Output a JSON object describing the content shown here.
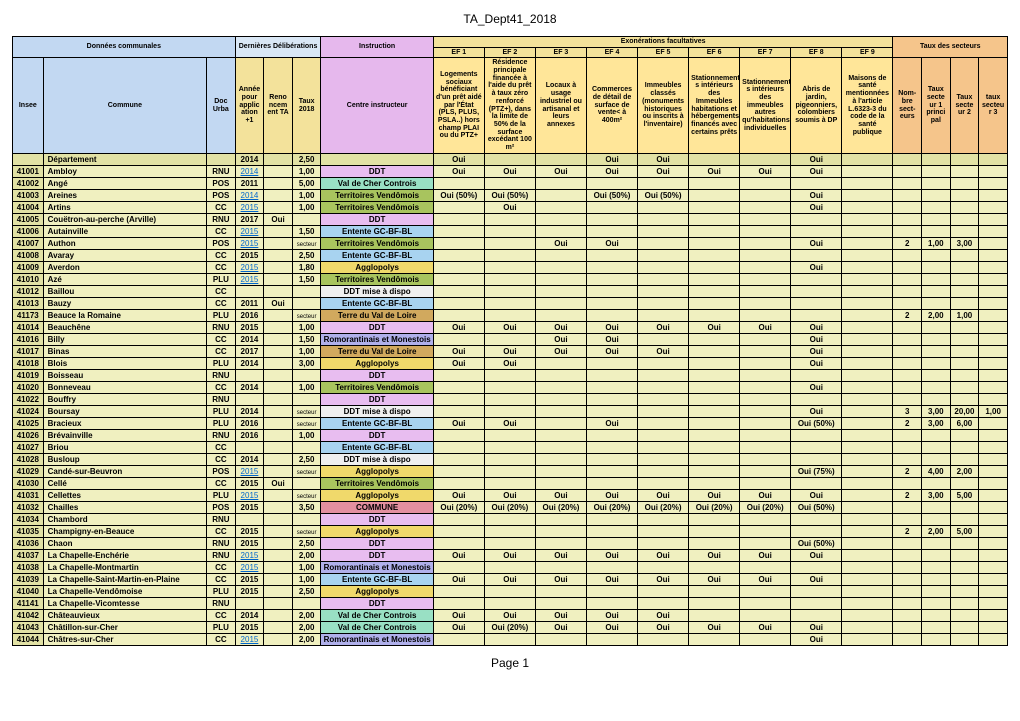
{
  "page_title": "TA_Dept41_2018",
  "footer": "Page 1",
  "colors": {
    "header_blue": "#c2d8f2",
    "header_violet": "#e6b8ed",
    "header_orange": "#f5c58b",
    "header_yellowH": "#f3e29b",
    "header_yellow": "#ffe699",
    "row_khaki": "#e2e2a5",
    "row_lightkhaki": "#f0f0c0",
    "ci_ddt": "#e8bdf0",
    "ci_valcher": "#99e0c4",
    "ci_terrvend": "#a8c45e",
    "ci_entente": "#a8d3f0",
    "ci_agglo": "#f0d96b",
    "ci_ddtmise": "#efefef",
    "ci_terreval": "#d1a95e",
    "ci_romo": "#b0b0eb",
    "ci_commune": "#e38fa0"
  },
  "header": {
    "donnees_communales": "Données communales",
    "dernieres_deliberations": "Dernières Délibérations",
    "instruction": "Instruction",
    "exonerations": "Exonérations facultatives",
    "taux_secteurs": "Taux des secteurs",
    "ef_labels": [
      "EF 1",
      "EF 2",
      "EF 3",
      "EF 4",
      "EF 5",
      "EF 6",
      "EF 7",
      "EF 8",
      "EF 9"
    ],
    "insee": "Insee",
    "commune": "Commune",
    "doc_urba": "Doc Urba",
    "annee_pour_applic": "Année pour applic ation +1",
    "reno_ncem_ta": "Reno ncem ent TA",
    "taux_2018": "Taux 2018",
    "centre_instructeur": "Centre instructeur",
    "ef1_desc": "Logements sociaux bénéficiant d'un prêt aidé par l'État (PLS, PLUS, PSLA..) hors champ PLAI ou du PTZ+",
    "ef2_desc": "Résidence principale financée à l'aide du prêt à taux zéro renforcé (PTZ+), dans la limite de 50% de la surface excédant 100 m²",
    "ef3_desc": "Locaux à usage industriel ou artisanal et leurs annexes",
    "ef4_desc": "Commerces de détail de surface de vente< à 400m²",
    "ef5_desc": "Immeubles classés (monuments historiques ou inscrits à l'inventaire)",
    "ef6_desc": "Stationnement s intérieurs des Immeubles habitations et hébergements financés avec certains prêts",
    "ef7_desc": "Stationnement s intérieurs des immeubles autres qu'habitations individuelles",
    "ef8_desc": "Abris de jardin, pigeonniers, colombiers soumis à DP",
    "ef9_desc": "Maisons de santé mentionnées à l'article L.6323-3 du code de la santé publique",
    "nom_bre_sect": "Nom- bre sect- eurs",
    "taux_secte_ur1": "Taux secte ur 1 princi pal",
    "taux_secte_ur2": "Taux secte ur 2",
    "taux_secteu_r3": "taux secteu r 3"
  },
  "departement_label": "Département",
  "ci_map": {
    "DDT": "ci-ddt",
    "Val de Cher Controis": "ci-valcher",
    "Territoires Vendômois": "ci-terrvend",
    "Entente GC-BF-BL": "ci-entente",
    "Agglopolys": "ci-agglo",
    "DDT mise à dispo": "ci-ddtmise",
    "Terre du Val de Loire": "ci-terreval",
    "Romorantinais et Monestois": "ci-romo",
    "COMMUNE": "ci-commune"
  },
  "dept_row": {
    "annee": "2014",
    "taux": "2,50",
    "ef": [
      "Oui",
      "",
      "",
      "Oui",
      "Oui",
      "",
      "",
      "Oui",
      ""
    ]
  },
  "rows": [
    {
      "insee": "41001",
      "commune": "Ambloy",
      "doc": "RNU",
      "annee": "2014",
      "link": true,
      "reno": "",
      "taux": "1,00",
      "centre": "DDT",
      "ef": [
        "Oui",
        "Oui",
        "Oui",
        "Oui",
        "Oui",
        "Oui",
        "Oui",
        "Oui",
        ""
      ],
      "sec": [
        "",
        "",
        "",
        ""
      ]
    },
    {
      "insee": "41002",
      "commune": "Angé",
      "doc": "POS",
      "annee": "2011",
      "link": false,
      "reno": "",
      "taux": "5,00",
      "centre": "Val de Cher Controis",
      "ef": [
        "",
        "",
        "",
        "",
        "",
        "",
        "",
        "",
        ""
      ],
      "sec": [
        "",
        "",
        "",
        ""
      ]
    },
    {
      "insee": "41003",
      "commune": "Areines",
      "doc": "POS",
      "annee": "2014",
      "link": true,
      "reno": "",
      "taux": "1,00",
      "centre": "Territoires Vendômois",
      "ef": [
        "Oui (50%)",
        "Oui (50%)",
        "",
        "Oui (50%)",
        "Oui (50%)",
        "",
        "",
        "Oui",
        ""
      ],
      "sec": [
        "",
        "",
        "",
        ""
      ]
    },
    {
      "insee": "41004",
      "commune": "Artins",
      "doc": "CC",
      "annee": "2015",
      "link": true,
      "reno": "",
      "taux": "1,00",
      "centre": "Territoires Vendômois",
      "ef": [
        "",
        "Oui",
        "",
        "",
        "",
        "",
        "",
        "Oui",
        ""
      ],
      "sec": [
        "",
        "",
        "",
        ""
      ]
    },
    {
      "insee": "41005",
      "commune": "Couëtron-au-perche (Arville)",
      "doc": "RNU",
      "annee": "2017",
      "link": false,
      "reno": "Oui",
      "taux": "",
      "centre": "DDT",
      "ef": [
        "",
        "",
        "",
        "",
        "",
        "",
        "",
        "",
        ""
      ],
      "sec": [
        "",
        "",
        "",
        ""
      ]
    },
    {
      "insee": "41006",
      "commune": "Autainville",
      "doc": "CC",
      "annee": "2015",
      "link": true,
      "reno": "",
      "taux": "1,50",
      "centre": "Entente GC-BF-BL",
      "ef": [
        "",
        "",
        "",
        "",
        "",
        "",
        "",
        "",
        ""
      ],
      "sec": [
        "",
        "",
        "",
        ""
      ]
    },
    {
      "insee": "41007",
      "commune": "Authon",
      "doc": "POS",
      "annee": "2015",
      "link": true,
      "reno": "",
      "taux": "secteur",
      "centre": "Territoires Vendômois",
      "ef": [
        "",
        "",
        "Oui",
        "Oui",
        "",
        "",
        "",
        "Oui",
        ""
      ],
      "sec": [
        "2",
        "1,00",
        "3,00",
        ""
      ]
    },
    {
      "insee": "41008",
      "commune": "Avaray",
      "doc": "CC",
      "annee": "2015",
      "link": false,
      "reno": "",
      "taux": "2,50",
      "centre": "Entente GC-BF-BL",
      "ef": [
        "",
        "",
        "",
        "",
        "",
        "",
        "",
        "",
        ""
      ],
      "sec": [
        "",
        "",
        "",
        ""
      ]
    },
    {
      "insee": "41009",
      "commune": "Averdon",
      "doc": "CC",
      "annee": "2015",
      "link": true,
      "reno": "",
      "taux": "1,80",
      "centre": "Agglopolys",
      "ef": [
        "",
        "",
        "",
        "",
        "",
        "",
        "",
        "Oui",
        ""
      ],
      "sec": [
        "",
        "",
        "",
        ""
      ]
    },
    {
      "insee": "41010",
      "commune": "Azé",
      "doc": "PLU",
      "annee": "2015",
      "link": true,
      "reno": "",
      "taux": "1,50",
      "centre": "Territoires Vendômois",
      "ef": [
        "",
        "",
        "",
        "",
        "",
        "",
        "",
        "",
        ""
      ],
      "sec": [
        "",
        "",
        "",
        ""
      ]
    },
    {
      "insee": "41012",
      "commune": "Baillou",
      "doc": "CC",
      "annee": "",
      "link": false,
      "reno": "",
      "taux": "",
      "centre": "DDT mise à dispo",
      "ef": [
        "",
        "",
        "",
        "",
        "",
        "",
        "",
        "",
        ""
      ],
      "sec": [
        "",
        "",
        "",
        ""
      ]
    },
    {
      "insee": "41013",
      "commune": "Bauzy",
      "doc": "CC",
      "annee": "2011",
      "link": false,
      "reno": "Oui",
      "taux": "",
      "centre": "Entente GC-BF-BL",
      "ef": [
        "",
        "",
        "",
        "",
        "",
        "",
        "",
        "",
        ""
      ],
      "sec": [
        "",
        "",
        "",
        ""
      ]
    },
    {
      "insee": "41173",
      "commune": "Beauce la Romaine",
      "doc": "PLU",
      "annee": "2016",
      "link": false,
      "reno": "",
      "taux": "secteur",
      "centre": "Terre du Val de Loire",
      "ef": [
        "",
        "",
        "",
        "",
        "",
        "",
        "",
        "",
        ""
      ],
      "sec": [
        "2",
        "2,00",
        "1,00",
        ""
      ]
    },
    {
      "insee": "41014",
      "commune": "Beauchêne",
      "doc": "RNU",
      "annee": "2015",
      "link": false,
      "reno": "",
      "taux": "1,00",
      "centre": "DDT",
      "ef": [
        "Oui",
        "Oui",
        "Oui",
        "Oui",
        "Oui",
        "Oui",
        "Oui",
        "Oui",
        ""
      ],
      "sec": [
        "",
        "",
        "",
        ""
      ]
    },
    {
      "insee": "41016",
      "commune": "Billy",
      "doc": "CC",
      "annee": "2014",
      "link": false,
      "reno": "",
      "taux": "1,50",
      "centre": "Romorantinais et Monestois",
      "ef": [
        "",
        "",
        "Oui",
        "Oui",
        "",
        "",
        "",
        "Oui",
        ""
      ],
      "sec": [
        "",
        "",
        "",
        ""
      ]
    },
    {
      "insee": "41017",
      "commune": "Binas",
      "doc": "CC",
      "annee": "2017",
      "link": false,
      "reno": "",
      "taux": "1,00",
      "centre": "Terre du Val de Loire",
      "ef": [
        "Oui",
        "Oui",
        "Oui",
        "Oui",
        "Oui",
        "",
        "",
        "Oui",
        ""
      ],
      "sec": [
        "",
        "",
        "",
        ""
      ]
    },
    {
      "insee": "41018",
      "commune": "Blois",
      "doc": "PLU",
      "annee": "2014",
      "link": false,
      "reno": "",
      "taux": "3,00",
      "centre": "Agglopolys",
      "ef": [
        "Oui",
        "Oui",
        "",
        "",
        "",
        "",
        "",
        "Oui",
        ""
      ],
      "sec": [
        "",
        "",
        "",
        ""
      ]
    },
    {
      "insee": "41019",
      "commune": "Boisseau",
      "doc": "RNU",
      "annee": "",
      "link": false,
      "reno": "",
      "taux": "",
      "centre": "DDT",
      "ef": [
        "",
        "",
        "",
        "",
        "",
        "",
        "",
        "",
        ""
      ],
      "sec": [
        "",
        "",
        "",
        ""
      ]
    },
    {
      "insee": "41020",
      "commune": "Bonneveau",
      "doc": "CC",
      "annee": "2014",
      "link": false,
      "reno": "",
      "taux": "1,00",
      "centre": "Territoires Vendômois",
      "ef": [
        "",
        "",
        "",
        "",
        "",
        "",
        "",
        "Oui",
        ""
      ],
      "sec": [
        "",
        "",
        "",
        ""
      ]
    },
    {
      "insee": "41022",
      "commune": "Bouffry",
      "doc": "RNU",
      "annee": "",
      "link": false,
      "reno": "",
      "taux": "",
      "centre": "DDT",
      "ef": [
        "",
        "",
        "",
        "",
        "",
        "",
        "",
        "",
        ""
      ],
      "sec": [
        "",
        "",
        "",
        ""
      ]
    },
    {
      "insee": "41024",
      "commune": "Boursay",
      "doc": "PLU",
      "annee": "2014",
      "link": false,
      "reno": "",
      "taux": "secteur",
      "centre": "DDT mise à dispo",
      "ef": [
        "",
        "",
        "",
        "",
        "",
        "",
        "",
        "Oui",
        ""
      ],
      "sec": [
        "3",
        "3,00",
        "20,00",
        "1,00"
      ]
    },
    {
      "insee": "41025",
      "commune": "Bracieux",
      "doc": "PLU",
      "annee": "2016",
      "link": false,
      "reno": "",
      "taux": "secteur",
      "centre": "Entente GC-BF-BL",
      "ef": [
        "Oui",
        "Oui",
        "",
        "Oui",
        "",
        "",
        "",
        "Oui (50%)",
        ""
      ],
      "sec": [
        "2",
        "3,00",
        "6,00",
        ""
      ]
    },
    {
      "insee": "41026",
      "commune": "Brévainville",
      "doc": "RNU",
      "annee": "2016",
      "link": false,
      "reno": "",
      "taux": "1,00",
      "centre": "DDT",
      "ef": [
        "",
        "",
        "",
        "",
        "",
        "",
        "",
        "",
        ""
      ],
      "sec": [
        "",
        "",
        "",
        ""
      ]
    },
    {
      "insee": "41027",
      "commune": "Briou",
      "doc": "CC",
      "annee": "",
      "link": false,
      "reno": "",
      "taux": "",
      "centre": "Entente GC-BF-BL",
      "ef": [
        "",
        "",
        "",
        "",
        "",
        "",
        "",
        "",
        ""
      ],
      "sec": [
        "",
        "",
        "",
        ""
      ]
    },
    {
      "insee": "41028",
      "commune": "Busloup",
      "doc": "CC",
      "annee": "2014",
      "link": false,
      "reno": "",
      "taux": "2,50",
      "centre": "DDT mise à dispo",
      "ef": [
        "",
        "",
        "",
        "",
        "",
        "",
        "",
        "",
        ""
      ],
      "sec": [
        "",
        "",
        "",
        ""
      ]
    },
    {
      "insee": "41029",
      "commune": "Candé-sur-Beuvron",
      "doc": "POS",
      "annee": "2015",
      "link": true,
      "reno": "",
      "taux": "secteur",
      "centre": "Agglopolys",
      "ef": [
        "",
        "",
        "",
        "",
        "",
        "",
        "",
        "Oui (75%)",
        ""
      ],
      "sec": [
        "2",
        "4,00",
        "2,00",
        ""
      ]
    },
    {
      "insee": "41030",
      "commune": "Cellé",
      "doc": "CC",
      "annee": "2015",
      "link": false,
      "reno": "Oui",
      "taux": "",
      "centre": "Territoires Vendômois",
      "ef": [
        "",
        "",
        "",
        "",
        "",
        "",
        "",
        "",
        ""
      ],
      "sec": [
        "",
        "",
        "",
        ""
      ]
    },
    {
      "insee": "41031",
      "commune": "Cellettes",
      "doc": "PLU",
      "annee": "2015",
      "link": true,
      "reno": "",
      "taux": "secteur",
      "centre": "Agglopolys",
      "ef": [
        "Oui",
        "Oui",
        "Oui",
        "Oui",
        "Oui",
        "Oui",
        "Oui",
        "Oui",
        ""
      ],
      "sec": [
        "2",
        "3,00",
        "5,00",
        ""
      ]
    },
    {
      "insee": "41032",
      "commune": "Chailles",
      "doc": "POS",
      "annee": "2015",
      "link": false,
      "reno": "",
      "taux": "3,50",
      "centre": "COMMUNE",
      "ef": [
        "Oui (20%)",
        "Oui (20%)",
        "Oui (20%)",
        "Oui (20%)",
        "Oui (20%)",
        "Oui (20%)",
        "Oui (20%)",
        "Oui (50%)",
        ""
      ],
      "sec": [
        "",
        "",
        "",
        ""
      ]
    },
    {
      "insee": "41034",
      "commune": "Chambord",
      "doc": "RNU",
      "annee": "",
      "link": false,
      "reno": "",
      "taux": "",
      "centre": "DDT",
      "ef": [
        "",
        "",
        "",
        "",
        "",
        "",
        "",
        "",
        ""
      ],
      "sec": [
        "",
        "",
        "",
        ""
      ]
    },
    {
      "insee": "41035",
      "commune": "Champigny-en-Beauce",
      "doc": "CC",
      "annee": "2015",
      "link": false,
      "reno": "",
      "taux": "secteur",
      "centre": "Agglopolys",
      "ef": [
        "",
        "",
        "",
        "",
        "",
        "",
        "",
        "",
        ""
      ],
      "sec": [
        "2",
        "2,00",
        "5,00",
        ""
      ]
    },
    {
      "insee": "41036",
      "commune": "Chaon",
      "doc": "RNU",
      "annee": "2015",
      "link": false,
      "reno": "",
      "taux": "2,50",
      "centre": "DDT",
      "ef": [
        "",
        "",
        "",
        "",
        "",
        "",
        "",
        "Oui (50%)",
        ""
      ],
      "sec": [
        "",
        "",
        "",
        ""
      ]
    },
    {
      "insee": "41037",
      "commune": "La Chapelle-Enchérie",
      "doc": "RNU",
      "annee": "2015",
      "link": true,
      "reno": "",
      "taux": "2,00",
      "centre": "DDT",
      "ef": [
        "Oui",
        "Oui",
        "Oui",
        "Oui",
        "Oui",
        "Oui",
        "Oui",
        "Oui",
        ""
      ],
      "sec": [
        "",
        "",
        "",
        ""
      ]
    },
    {
      "insee": "41038",
      "commune": "La Chapelle-Montmartin",
      "doc": "CC",
      "annee": "2015",
      "link": true,
      "reno": "",
      "taux": "1,00",
      "centre": "Romorantinais et Monestois",
      "ef": [
        "",
        "",
        "",
        "",
        "",
        "",
        "",
        "",
        ""
      ],
      "sec": [
        "",
        "",
        "",
        ""
      ]
    },
    {
      "insee": "41039",
      "commune": "La Chapelle-Saint-Martin-en-Plaine",
      "doc": "CC",
      "annee": "2015",
      "link": false,
      "reno": "",
      "taux": "1,00",
      "centre": "Entente GC-BF-BL",
      "ef": [
        "Oui",
        "Oui",
        "Oui",
        "Oui",
        "Oui",
        "Oui",
        "Oui",
        "Oui",
        ""
      ],
      "sec": [
        "",
        "",
        "",
        ""
      ]
    },
    {
      "insee": "41040",
      "commune": "La Chapelle-Vendômoise",
      "doc": "PLU",
      "annee": "2015",
      "link": false,
      "reno": "",
      "taux": "2,50",
      "centre": "Agglopolys",
      "ef": [
        "",
        "",
        "",
        "",
        "",
        "",
        "",
        "",
        ""
      ],
      "sec": [
        "",
        "",
        "",
        ""
      ]
    },
    {
      "insee": "41141",
      "commune": "La Chapelle-Vicomtesse",
      "doc": "RNU",
      "annee": "",
      "link": false,
      "reno": "",
      "taux": "",
      "centre": "DDT",
      "ef": [
        "",
        "",
        "",
        "",
        "",
        "",
        "",
        "",
        ""
      ],
      "sec": [
        "",
        "",
        "",
        ""
      ]
    },
    {
      "insee": "41042",
      "commune": "Châteauvieux",
      "doc": "CC",
      "annee": "2014",
      "link": false,
      "reno": "",
      "taux": "2,00",
      "centre": "Val de Cher Controis",
      "ef": [
        "Oui",
        "Oui",
        "Oui",
        "Oui",
        "Oui",
        "",
        "",
        "",
        ""
      ],
      "sec": [
        "",
        "",
        "",
        ""
      ]
    },
    {
      "insee": "41043",
      "commune": "Châtillon-sur-Cher",
      "doc": "PLU",
      "annee": "2015",
      "link": false,
      "reno": "",
      "taux": "2,00",
      "centre": "Val de Cher Controis",
      "ef": [
        "Oui",
        "Oui (20%)",
        "Oui",
        "Oui",
        "Oui",
        "Oui",
        "Oui",
        "Oui",
        ""
      ],
      "sec": [
        "",
        "",
        "",
        ""
      ]
    },
    {
      "insee": "41044",
      "commune": "Châtres-sur-Cher",
      "doc": "CC",
      "annee": "2015",
      "link": true,
      "reno": "",
      "taux": "2,00",
      "centre": "Romorantinais et Monestois",
      "ef": [
        "",
        "",
        "",
        "",
        "",
        "",
        "",
        "Oui",
        ""
      ],
      "sec": [
        "",
        "",
        "",
        ""
      ]
    }
  ]
}
